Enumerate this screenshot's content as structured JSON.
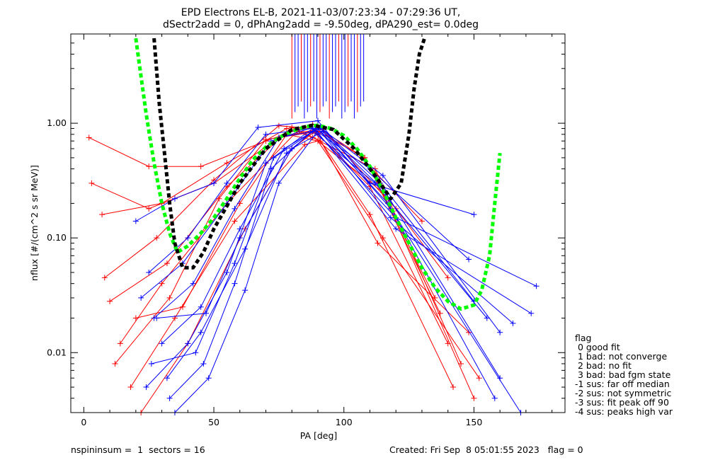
{
  "chart_data": {
    "type": "line",
    "title": "EPD Electrons EL-B, 2021-11-03/07:23:34 - 07:29:36 UT,",
    "subtitle": "dSectr2add = 0, dPhAng2add = -9.50deg, dPA290_est=   0.0deg",
    "xlabel": "PA [deg]",
    "ylabel": "nflux [#/(cm^2 s sr MeV)]",
    "xlim": [
      -5,
      185
    ],
    "ylim": [
      0.003,
      6.0
    ],
    "yscale": "log",
    "x_ticks": [
      0,
      50,
      100,
      150
    ],
    "y_ticks": [
      0.01,
      0.1,
      1.0
    ],
    "y_tick_labels": [
      "0.01",
      "0.10",
      "1.00"
    ],
    "grid": false,
    "legend_position": "right of plot",
    "series": [
      {
        "color": "#00ff00",
        "style": "dashed",
        "x": [
          20,
          24,
          27,
          30,
          33,
          36,
          40,
          45,
          50,
          55,
          60,
          65,
          70,
          75,
          80,
          85,
          90,
          95,
          100,
          105,
          110,
          115,
          120,
          125,
          130,
          135,
          140,
          145,
          150,
          153,
          156,
          158,
          160
        ],
        "values": [
          5.5,
          1.2,
          0.45,
          0.2,
          0.11,
          0.075,
          0.085,
          0.11,
          0.15,
          0.22,
          0.33,
          0.48,
          0.62,
          0.75,
          0.85,
          0.93,
          0.96,
          0.9,
          0.78,
          0.6,
          0.42,
          0.26,
          0.15,
          0.09,
          0.055,
          0.037,
          0.028,
          0.024,
          0.026,
          0.035,
          0.07,
          0.2,
          0.55
        ]
      },
      {
        "color": "#000000",
        "style": "dashed",
        "x": [
          27,
          29,
          31,
          33,
          35,
          38,
          42,
          46,
          50,
          60,
          70,
          80,
          88,
          96,
          104,
          112,
          118,
          122,
          125,
          127,
          129,
          131
        ],
        "values": [
          5.5,
          1.5,
          0.55,
          0.2,
          0.09,
          0.055,
          0.055,
          0.075,
          0.12,
          0.3,
          0.6,
          0.88,
          0.96,
          0.88,
          0.6,
          0.35,
          0.22,
          0.3,
          0.8,
          2.0,
          4.0,
          5.5
        ]
      }
    ],
    "red_curves": [
      {
        "x": [
          2,
          25,
          45,
          70,
          88,
          105,
          130
        ],
        "values": [
          0.75,
          0.42,
          0.42,
          0.7,
          0.98,
          0.55,
          0.14
        ]
      },
      {
        "x": [
          3,
          25,
          50,
          75,
          89,
          108,
          137
        ],
        "values": [
          0.3,
          0.18,
          0.3,
          0.75,
          0.88,
          0.5,
          0.022
        ]
      },
      {
        "x": [
          7,
          30,
          55,
          78,
          90,
          110,
          140
        ],
        "values": [
          0.16,
          0.2,
          0.45,
          0.9,
          0.8,
          0.28,
          0.012
        ]
      },
      {
        "x": [
          10,
          32,
          55,
          80,
          91,
          110,
          142
        ],
        "values": [
          0.028,
          0.06,
          0.28,
          0.92,
          0.7,
          0.16,
          0.005
        ]
      },
      {
        "x": [
          14,
          30,
          55,
          82,
          88,
          112,
          145
        ],
        "values": [
          0.012,
          0.04,
          0.2,
          0.85,
          0.75,
          0.4,
          0.008
        ]
      },
      {
        "x": [
          18,
          35,
          58,
          85,
          90,
          115,
          150
        ],
        "values": [
          0.005,
          0.02,
          0.14,
          0.65,
          0.7,
          0.25,
          0.004
        ]
      },
      {
        "x": [
          22,
          40,
          62,
          80,
          89,
          113,
          148
        ],
        "values": [
          0.003,
          0.012,
          0.12,
          0.6,
          0.85,
          0.09,
          0.015
        ]
      },
      {
        "x": [
          8,
          28,
          50,
          75,
          92,
          120,
          140
        ],
        "values": [
          0.045,
          0.1,
          0.32,
          0.95,
          0.88,
          0.18,
          0.045
        ]
      },
      {
        "x": [
          12,
          33,
          52,
          70,
          90,
          108,
          135
        ],
        "values": [
          0.008,
          0.03,
          0.22,
          0.72,
          0.85,
          0.5,
          0.03
        ]
      },
      {
        "x": [
          20,
          38,
          60,
          78,
          90,
          115,
          152
        ],
        "values": [
          0.02,
          0.025,
          0.2,
          0.8,
          0.7,
          0.1,
          0.006
        ]
      }
    ],
    "blue_curves": [
      {
        "x": [
          20,
          35,
          50,
          67,
          90,
          110,
          150
        ],
        "values": [
          0.14,
          0.22,
          0.3,
          0.92,
          1.05,
          0.3,
          0.16
        ]
      },
      {
        "x": [
          25,
          40,
          55,
          70,
          88,
          110,
          148
        ],
        "values": [
          0.05,
          0.1,
          0.3,
          0.8,
          0.9,
          0.4,
          0.065
        ]
      },
      {
        "x": [
          22,
          38,
          55,
          72,
          90,
          115,
          160
        ],
        "values": [
          0.03,
          0.06,
          0.2,
          0.7,
          0.95,
          0.35,
          0.015
        ]
      },
      {
        "x": [
          27,
          42,
          58,
          75,
          88,
          112,
          155
        ],
        "values": [
          0.02,
          0.04,
          0.18,
          0.75,
          0.85,
          0.3,
          0.02
        ]
      },
      {
        "x": [
          30,
          45,
          60,
          77,
          90,
          118,
          165
        ],
        "values": [
          0.012,
          0.025,
          0.12,
          0.6,
          0.9,
          0.15,
          0.018
        ]
      },
      {
        "x": [
          32,
          45,
          62,
          78,
          89,
          120,
          172
        ],
        "values": [
          0.006,
          0.015,
          0.08,
          0.55,
          0.88,
          0.12,
          0.022
        ]
      },
      {
        "x": [
          28,
          47,
          60,
          80,
          92,
          116,
          160
        ],
        "values": [
          0.02,
          0.022,
          0.1,
          0.6,
          0.85,
          0.25,
          0.006
        ]
      },
      {
        "x": [
          26,
          43,
          58,
          73,
          90,
          117,
          158
        ],
        "values": [
          0.008,
          0.01,
          0.06,
          0.5,
          0.9,
          0.2,
          0.004
        ]
      },
      {
        "x": [
          24,
          40,
          55,
          70,
          88,
          120,
          174
        ],
        "values": [
          0.005,
          0.012,
          0.05,
          0.45,
          0.9,
          0.15,
          0.038
        ]
      },
      {
        "x": [
          33,
          46,
          58,
          72,
          90,
          118,
          168
        ],
        "values": [
          0.004,
          0.008,
          0.04,
          0.4,
          0.95,
          0.18,
          0.003
        ]
      },
      {
        "x": [
          35,
          48,
          62,
          75,
          91,
          114,
          150
        ],
        "values": [
          0.003,
          0.006,
          0.035,
          0.3,
          0.92,
          0.3,
          0.028
        ]
      }
    ],
    "annotations": [
      {
        "x": 95,
        "values": [
          1.1,
          6.0
        ],
        "color": "#0000ff"
      }
    ]
  },
  "legend": {
    "title": "flag",
    "items": [
      " 0 good fit",
      " 1 bad: not converge",
      " 2 bad: no fit",
      " 3 bad: bad fgm state",
      "-1 sus: far off median",
      "-2 sus: not symmetric",
      "-3 sus: fit peak off 90",
      "-4 sus: peaks high var"
    ]
  },
  "footer": {
    "left": "nspininsum =  1  sectors = 16",
    "right": "Created: Fri Sep  8 05:01:55 2023   flag = 0"
  },
  "colors": {
    "red": "#ff0000",
    "blue": "#0000ff",
    "green_fit": "#00ff00",
    "black_fit": "#000000"
  }
}
